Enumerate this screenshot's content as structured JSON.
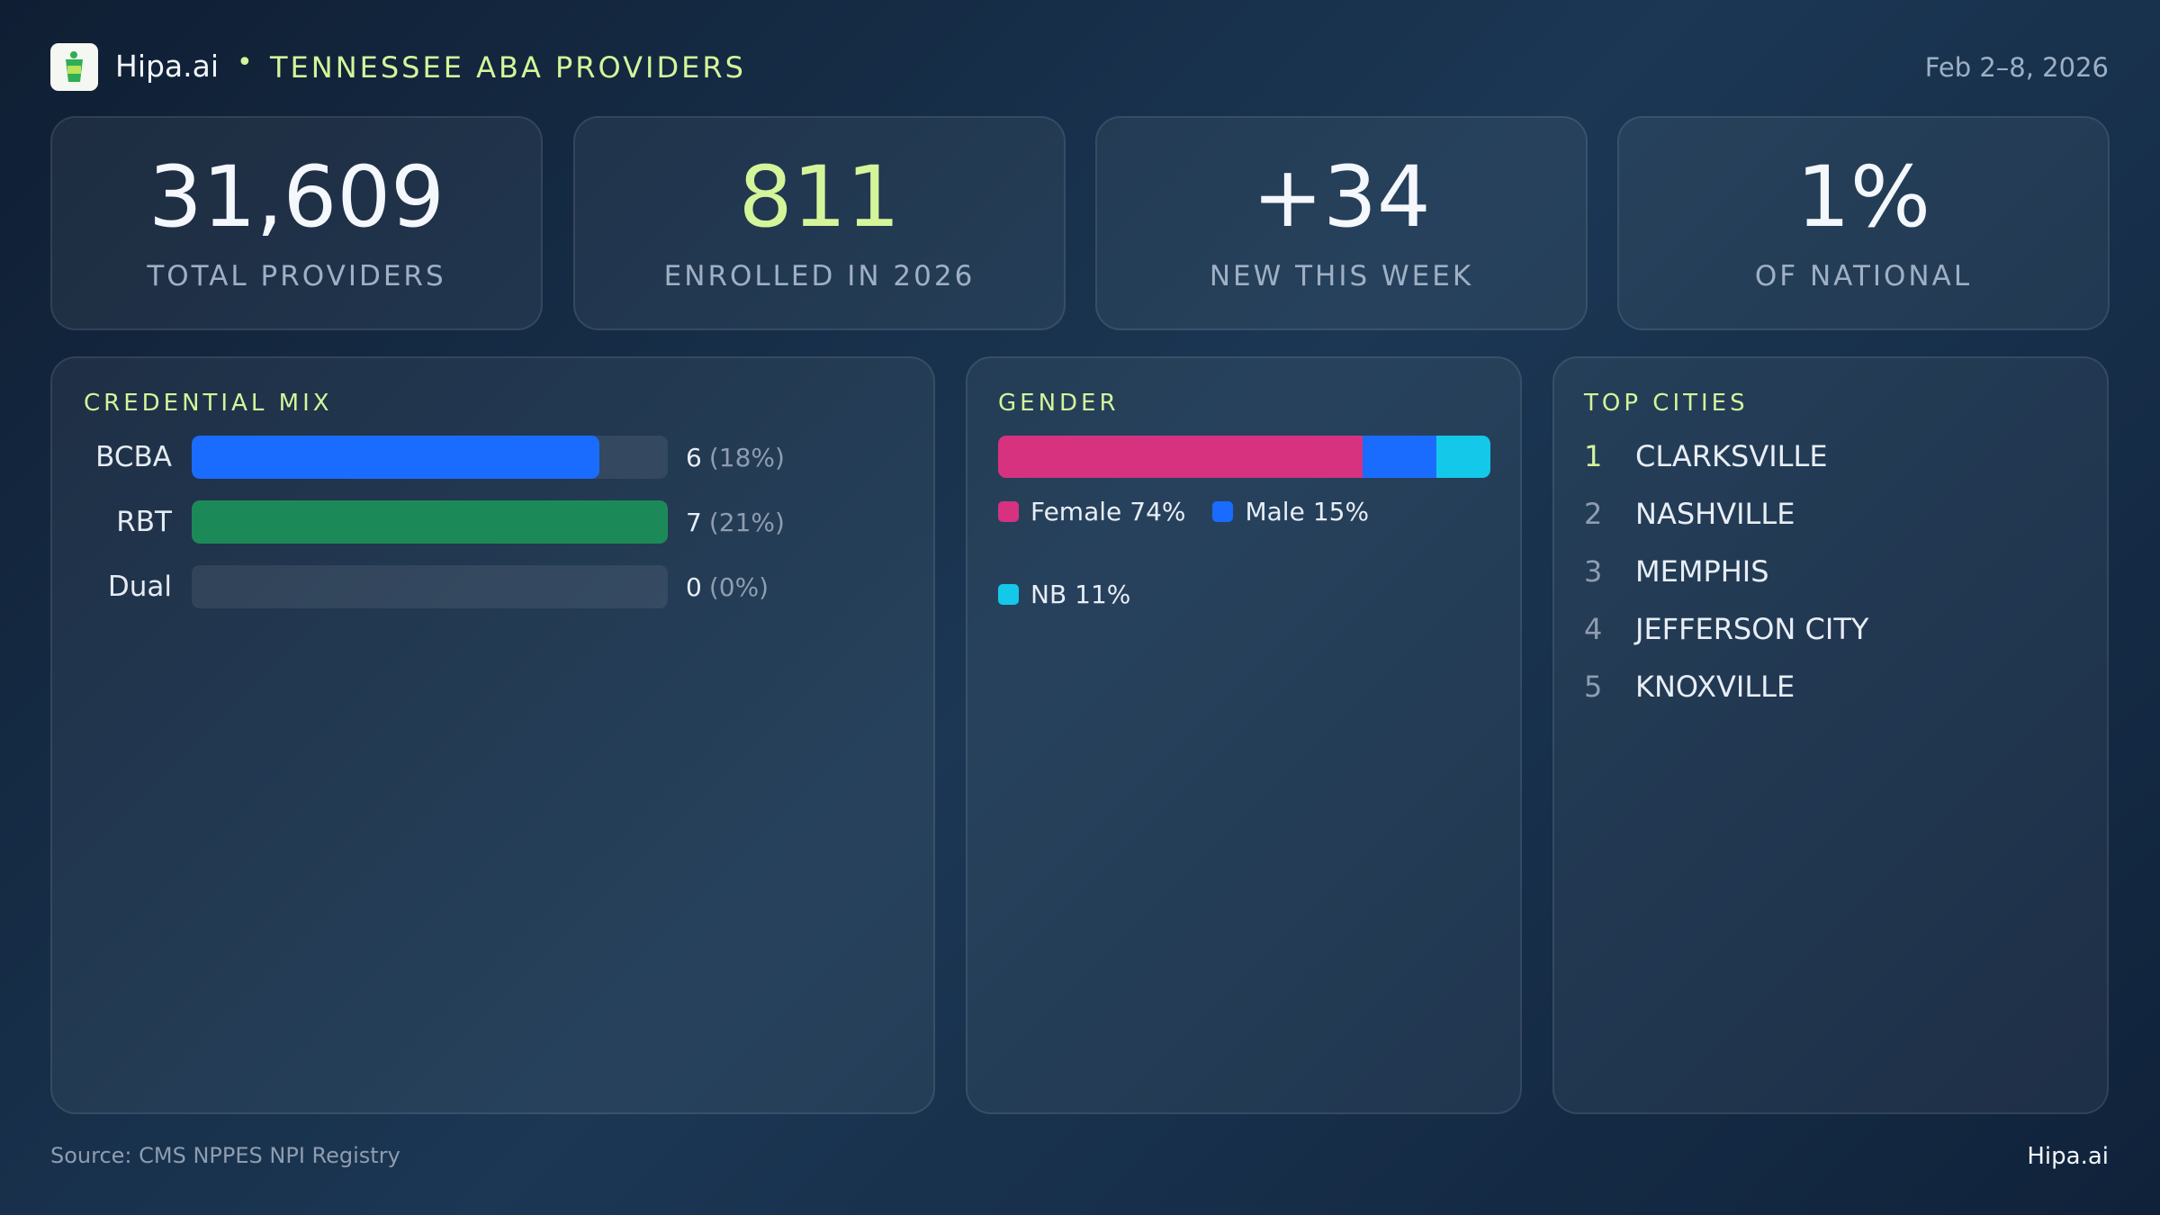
{
  "header": {
    "brand": "Hipa.ai",
    "title": "TENNESSEE ABA PROVIDERS",
    "date": "Feb 2–8, 2026"
  },
  "kpis": [
    {
      "value": "31,609",
      "label": "TOTAL PROVIDERS"
    },
    {
      "value": "811",
      "label": "ENROLLED IN 2026"
    },
    {
      "value": "+34",
      "label": "NEW THIS WEEK"
    },
    {
      "value": "1%",
      "label": "OF NATIONAL"
    }
  ],
  "credential_mix": {
    "type": "bar",
    "title": "CREDENTIAL MIX",
    "categories": [
      "BCBA",
      "RBT",
      "Dual"
    ],
    "values": [
      6,
      7,
      0
    ],
    "shares": [
      "(18%)",
      "(21%)",
      "(0%)"
    ],
    "colors": [
      "#1a6cff",
      "#1c8a58",
      "#3a82f7"
    ]
  },
  "gender": {
    "type": "stacked-bar",
    "title": "GENDER",
    "series": [
      {
        "name": "Female",
        "value": 74,
        "value_label": "74%",
        "color": "#d6327f"
      },
      {
        "name": "Male",
        "value": 15,
        "value_label": "15%",
        "color": "#1a6cff"
      },
      {
        "name": "NB",
        "value": 11,
        "value_label": "11%",
        "color": "#14c8ea"
      }
    ]
  },
  "top_cities": {
    "title": "TOP CITIES",
    "items": [
      {
        "rank": 1,
        "name": "CLARKSVILLE"
      },
      {
        "rank": 2,
        "name": "NASHVILLE"
      },
      {
        "rank": 3,
        "name": "MEMPHIS"
      },
      {
        "rank": 4,
        "name": "JEFFERSON CITY"
      },
      {
        "rank": 5,
        "name": "KNOXVILLE"
      }
    ]
  },
  "footer": {
    "source": "Source: CMS NPPES NPI Registry",
    "brand": "Hipa.ai"
  }
}
